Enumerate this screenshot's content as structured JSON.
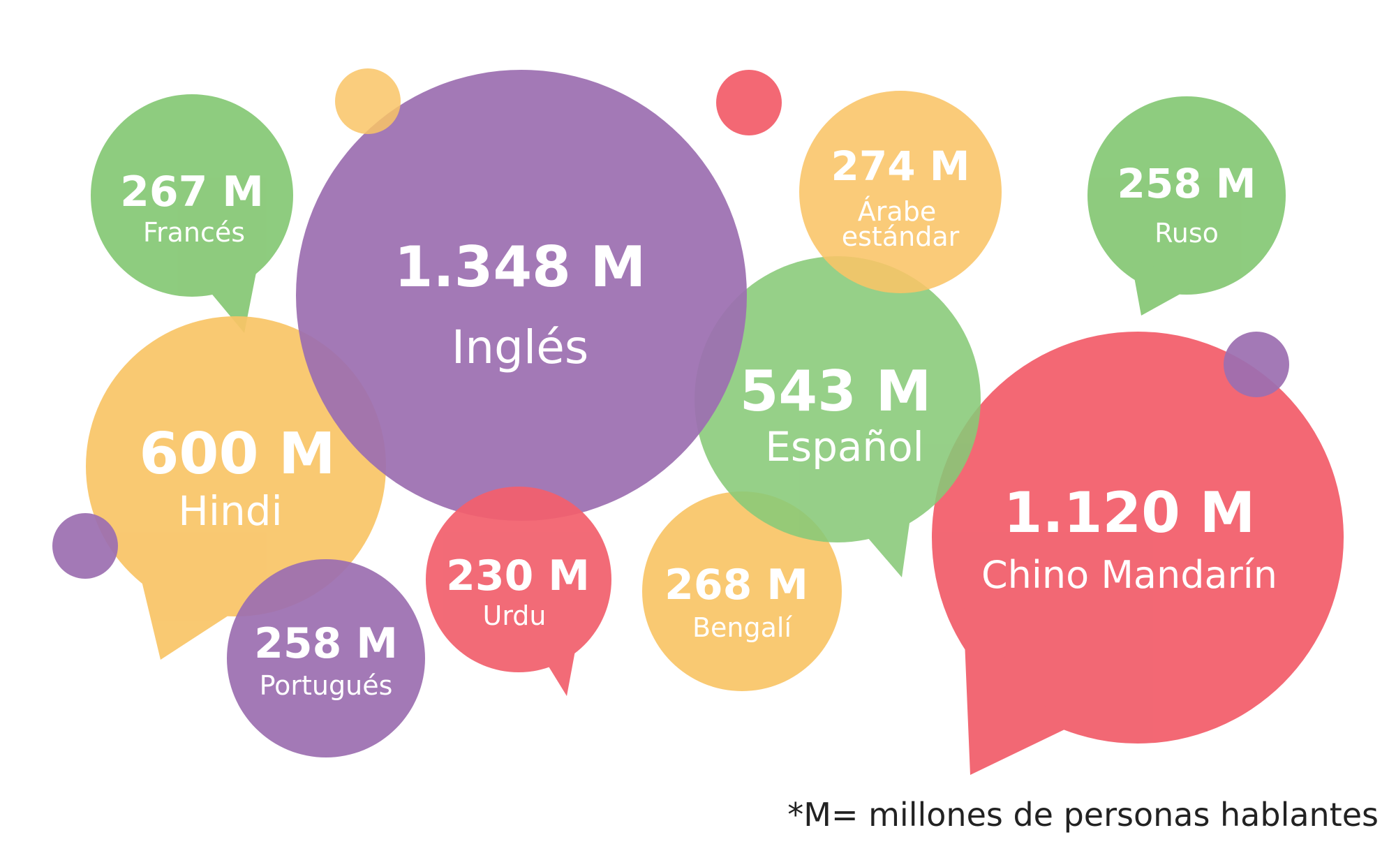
{
  "colors": {
    "purple": "#9c6fb0",
    "green": "#88c978",
    "yellow": "#f9c466",
    "red": "#f2606d",
    "text": "#ffffff",
    "footnote": "#222222"
  },
  "bubbles": [
    {
      "id": "chino-mandarin",
      "value": "1.120 M",
      "label": "Chino Mandarín",
      "color": "red"
    },
    {
      "id": "bengali",
      "value": "268 M",
      "label": "Bengalí",
      "color": "yellow"
    },
    {
      "id": "espanol",
      "value": "543 M",
      "label": "Español",
      "color": "green"
    },
    {
      "id": "arabe",
      "value": "274 M",
      "label": "Árabe estándar",
      "color": "yellow"
    },
    {
      "id": "ruso",
      "value": "258 M",
      "label": "Ruso",
      "color": "green"
    },
    {
      "id": "frances",
      "value": "267 M",
      "label": "Francés",
      "color": "green"
    },
    {
      "id": "hindi",
      "value": "600 M",
      "label": "Hindi",
      "color": "yellow"
    },
    {
      "id": "ingles",
      "value": "1.348 M",
      "label": "Inglés",
      "color": "purple"
    },
    {
      "id": "urdu",
      "value": "230 M",
      "label": "Urdu",
      "color": "red"
    },
    {
      "id": "portugues",
      "value": "258 M",
      "label": "Portugués",
      "color": "purple"
    }
  ],
  "footnote": "*M= millones de personas hablantes"
}
